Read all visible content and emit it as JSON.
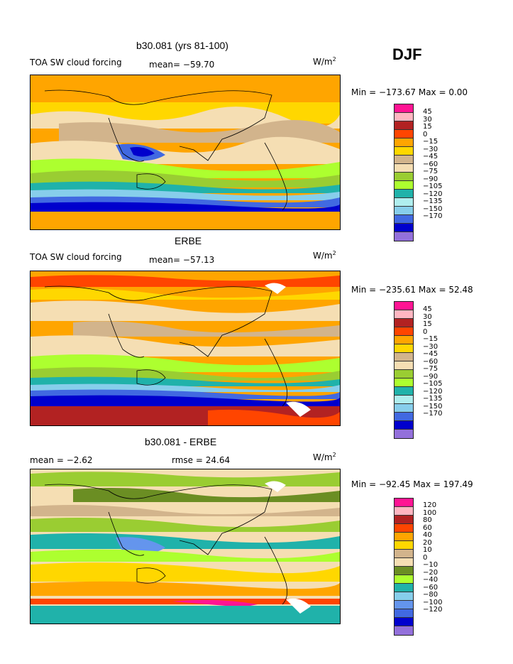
{
  "season": "DJF",
  "panels": [
    {
      "title": "b30.081 (yrs 81-100)",
      "left_label": "TOA SW cloud forcing",
      "mid_label": "mean= −59.70",
      "units": "W/m",
      "units_exp": "2",
      "minmax": "Min = −173.67 Max =    0.00",
      "levels": [
        "45",
        "30",
        "15",
        "0",
        "−15",
        "−30",
        "−45",
        "−60",
        "−75",
        "−90",
        "−105",
        "−120",
        "−135",
        "−150",
        "−170"
      ],
      "colors": [
        "#ff1493",
        "#ffb6c1",
        "#b22222",
        "#ff4500",
        "#ffa500",
        "#ffd700",
        "#d2b48c",
        "#f5deb3",
        "#9acd32",
        "#adff2f",
        "#20b2aa",
        "#afeeee",
        "#87ceeb",
        "#4169e1",
        "#0000cd",
        "#9370db"
      ]
    },
    {
      "title": "ERBE",
      "left_label": "TOA SW cloud forcing",
      "mid_label": "mean= −57.13",
      "units": "W/m",
      "units_exp": "2",
      "minmax": "Min = −235.61 Max =  52.48",
      "levels": [
        "45",
        "30",
        "15",
        "0",
        "−15",
        "−30",
        "−45",
        "−60",
        "−75",
        "−90",
        "−105",
        "−120",
        "−135",
        "−150",
        "−170"
      ],
      "colors": [
        "#ff1493",
        "#ffb6c1",
        "#b22222",
        "#ff4500",
        "#ffa500",
        "#ffd700",
        "#d2b48c",
        "#f5deb3",
        "#9acd32",
        "#adff2f",
        "#20b2aa",
        "#afeeee",
        "#87ceeb",
        "#4169e1",
        "#0000cd",
        "#9370db"
      ]
    },
    {
      "title": "b30.081 - ERBE",
      "left_label": "mean =   −2.62",
      "mid_label": "rmse =  24.64",
      "units": "W/m",
      "units_exp": "2",
      "minmax": "Min = −92.45 Max = 197.49",
      "levels": [
        "120",
        "100",
        "80",
        "60",
        "40",
        "20",
        "10",
        "0",
        "−10",
        "−20",
        "−40",
        "−60",
        "−80",
        "−100",
        "−120"
      ],
      "colors": [
        "#ff1493",
        "#ffb6c1",
        "#b22222",
        "#ff4500",
        "#ffa500",
        "#ffd700",
        "#d2b48c",
        "#f5deb3",
        "#6b8e23",
        "#adff2f",
        "#20b2aa",
        "#87ceeb",
        "#6495ed",
        "#4169e1",
        "#0000cd",
        "#9370db"
      ]
    }
  ]
}
